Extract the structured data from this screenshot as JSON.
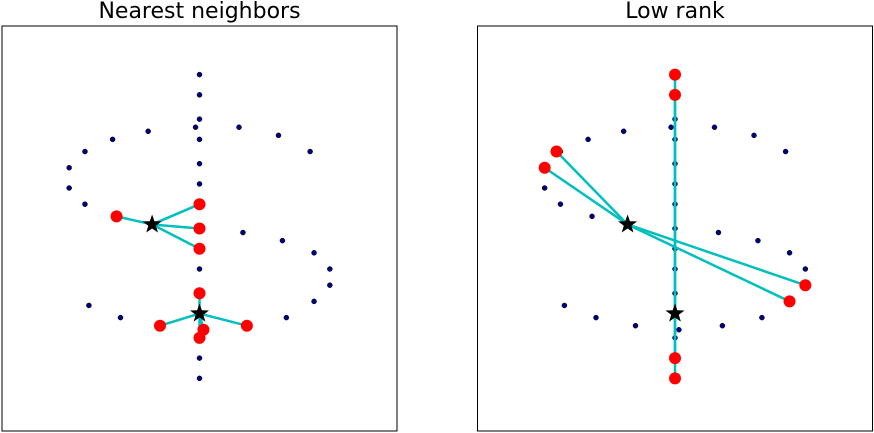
{
  "chart_data": [
    {
      "type": "scatter",
      "title": "Nearest neighbors",
      "xlim": [
        0,
        100
      ],
      "ylim": [
        0,
        100
      ],
      "points": {
        "color": "#000080",
        "x": [
          50,
          50,
          50,
          50,
          50,
          50,
          50,
          50,
          50,
          50,
          50,
          50,
          50,
          50,
          50,
          28,
          37,
          49,
          60,
          70,
          78,
          21,
          17,
          17,
          21,
          61,
          71,
          79,
          83,
          83,
          79,
          72,
          22,
          30,
          40,
          51,
          62,
          29
        ],
        "y": [
          88,
          83,
          77,
          72,
          66,
          61,
          56,
          50,
          45,
          40,
          34,
          29,
          23,
          18,
          13,
          72,
          74,
          75,
          75,
          73,
          69,
          69,
          65,
          60,
          56,
          49,
          47,
          44,
          40,
          36,
          32,
          28,
          31,
          28,
          26,
          25,
          26,
          53
        ]
      },
      "neighbors": {
        "color": "#ff0000",
        "x": [
          29,
          50,
          50,
          50,
          50,
          40,
          51,
          50,
          62
        ],
        "y": [
          53,
          56,
          50,
          45,
          34,
          26,
          25,
          23,
          26
        ]
      },
      "queries": {
        "color": "#000000",
        "x": [
          38,
          50
        ],
        "y": [
          51,
          29
        ]
      },
      "edge_color": "#00bfbf",
      "edges": [
        [
          0,
          0
        ],
        [
          0,
          1
        ],
        [
          0,
          2
        ],
        [
          0,
          3
        ],
        [
          1,
          4
        ],
        [
          1,
          5
        ],
        [
          1,
          6
        ],
        [
          1,
          7
        ],
        [
          1,
          8
        ]
      ]
    },
    {
      "type": "scatter",
      "title": "Low rank",
      "xlim": [
        0,
        100
      ],
      "ylim": [
        0,
        100
      ],
      "points": {
        "color": "#000080",
        "x": [
          50,
          50,
          50,
          50,
          50,
          50,
          50,
          50,
          50,
          50,
          50,
          50,
          50,
          50,
          50,
          28,
          37,
          49,
          60,
          70,
          78,
          21,
          17,
          17,
          21,
          61,
          71,
          79,
          83,
          83,
          79,
          72,
          22,
          30,
          40,
          51,
          62,
          29
        ],
        "y": [
          88,
          83,
          77,
          72,
          66,
          61,
          56,
          50,
          45,
          40,
          34,
          29,
          23,
          18,
          13,
          72,
          74,
          75,
          75,
          73,
          69,
          69,
          65,
          60,
          56,
          49,
          47,
          44,
          40,
          36,
          32,
          28,
          31,
          28,
          26,
          25,
          26,
          53
        ]
      },
      "neighbors": {
        "color": "#ff0000",
        "x": [
          20,
          17,
          83,
          79,
          50,
          50,
          50,
          50
        ],
        "y": [
          69,
          65,
          36,
          32,
          88,
          83,
          18,
          13
        ]
      },
      "queries": {
        "color": "#000000",
        "x": [
          38,
          50
        ],
        "y": [
          51,
          29
        ]
      },
      "edge_color": "#00bfbf",
      "edges": [
        [
          0,
          0
        ],
        [
          0,
          1
        ],
        [
          0,
          2
        ],
        [
          0,
          3
        ],
        [
          1,
          4
        ],
        [
          1,
          5
        ],
        [
          1,
          6
        ],
        [
          1,
          7
        ]
      ]
    }
  ]
}
